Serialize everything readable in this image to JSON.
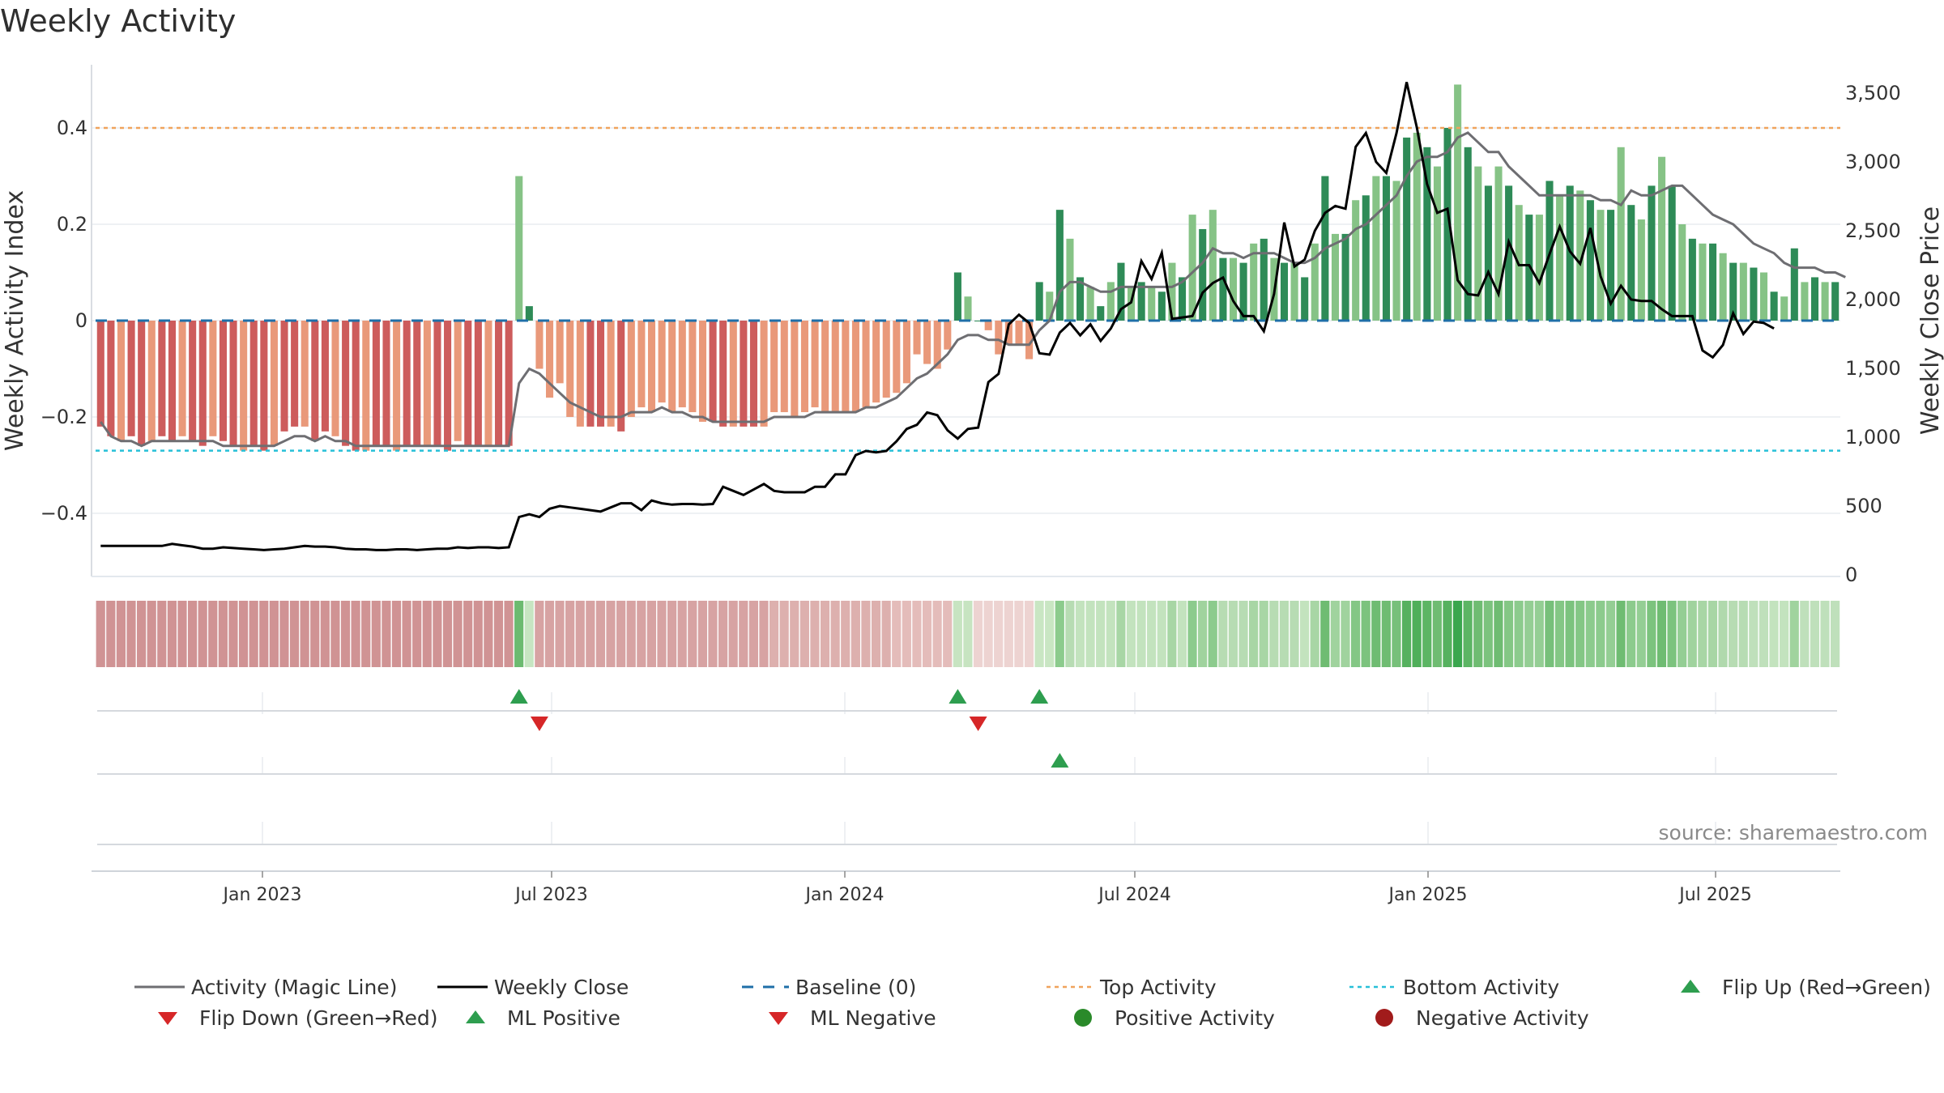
{
  "page": {
    "title": "Weekly Activity",
    "source": "source: sharemaestro.com"
  },
  "colors": {
    "magic_line": "#6e6e72",
    "close_line": "#000000",
    "baseline": "#1f6fa8",
    "top_line": "#f0a35c",
    "bottom_line": "#27c0d8",
    "pos_strong": "#2e8b57",
    "pos_weak": "#86c386",
    "neg_strong": "#cd5c5c",
    "neg_weak": "#e9997a",
    "flip_up": "#2e9e4f",
    "flip_down": "#d62728",
    "pos_dot": "#2a8a2a",
    "neg_dot": "#a11b1b"
  },
  "chart_data": {
    "type": "bar",
    "x_tick_labels": [
      "Jan 2023",
      "Jul 2023",
      "Jan 2024",
      "Jul 2024",
      "Jan 2025",
      "Jul 2025"
    ],
    "left_axis": {
      "label": "Weekly Activity Index",
      "ylim": [
        -0.53,
        0.53
      ],
      "ticks": [
        {
          "value": 0.4,
          "label": "0.4"
        },
        {
          "value": 0.2,
          "label": "0.2"
        },
        {
          "value": 0,
          "label": "0"
        },
        {
          "value": -0.2,
          "label": "−0.2"
        },
        {
          "value": -0.4,
          "label": "−0.4"
        }
      ]
    },
    "right_axis": {
      "label": "Weekly Close Price",
      "ylim": [
        0,
        3600
      ],
      "ticks": [
        {
          "value": 3500,
          "label": "3,500"
        },
        {
          "value": 3000,
          "label": "3,000"
        },
        {
          "value": 2500,
          "label": "2,500"
        },
        {
          "value": 2000,
          "label": "2,000"
        },
        {
          "value": 1500,
          "label": "1,500"
        },
        {
          "value": 1000,
          "label": "1,000"
        },
        {
          "value": 500,
          "label": "500"
        },
        {
          "value": 0,
          "label": "0"
        }
      ]
    },
    "reference_lines": {
      "baseline": 0,
      "top_activity": 0.4,
      "bottom_activity": -0.27
    },
    "activity": [
      -0.22,
      -0.24,
      -0.25,
      -0.24,
      -0.26,
      -0.25,
      -0.24,
      -0.25,
      -0.24,
      -0.25,
      -0.26,
      -0.24,
      -0.25,
      -0.26,
      -0.27,
      -0.26,
      -0.27,
      -0.26,
      -0.23,
      -0.22,
      -0.22,
      -0.25,
      -0.23,
      -0.24,
      -0.26,
      -0.27,
      -0.27,
      -0.26,
      -0.26,
      -0.27,
      -0.26,
      -0.26,
      -0.26,
      -0.26,
      -0.27,
      -0.25,
      -0.26,
      -0.26,
      -0.26,
      -0.26,
      -0.26,
      0.3,
      0.03,
      -0.1,
      -0.16,
      -0.13,
      -0.2,
      -0.22,
      -0.22,
      -0.22,
      -0.22,
      -0.23,
      -0.2,
      -0.18,
      -0.19,
      -0.17,
      -0.19,
      -0.18,
      -0.19,
      -0.21,
      -0.21,
      -0.22,
      -0.22,
      -0.22,
      -0.22,
      -0.22,
      -0.19,
      -0.19,
      -0.2,
      -0.19,
      -0.18,
      -0.19,
      -0.19,
      -0.19,
      -0.19,
      -0.18,
      -0.17,
      -0.16,
      -0.15,
      -0.13,
      -0.07,
      -0.09,
      -0.1,
      -0.06,
      0.1,
      0.05,
      0.0,
      -0.02,
      -0.07,
      -0.05,
      -0.05,
      -0.08,
      0.08,
      0.06,
      0.23,
      0.17,
      0.09,
      0.07,
      0.03,
      0.08,
      0.12,
      0.07,
      0.08,
      0.07,
      0.06,
      0.12,
      0.09,
      0.22,
      0.19,
      0.23,
      0.13,
      0.13,
      0.12,
      0.16,
      0.17,
      0.13,
      0.12,
      0.12,
      0.09,
      0.16,
      0.3,
      0.18,
      0.18,
      0.25,
      0.26,
      0.3,
      0.3,
      0.29,
      0.38,
      0.39,
      0.36,
      0.32,
      0.4,
      0.49,
      0.36,
      0.32,
      0.28,
      0.32,
      0.28,
      0.24,
      0.22,
      0.22,
      0.29,
      0.26,
      0.28,
      0.27,
      0.25,
      0.23,
      0.23,
      0.36,
      0.24,
      0.21,
      0.28,
      0.34,
      0.28,
      0.2,
      0.17,
      0.16,
      0.16,
      0.14,
      0.12,
      0.12,
      0.11,
      0.1,
      0.06,
      0.05,
      0.15,
      0.08,
      0.09,
      0.08,
      0.08
    ],
    "magic_line": [
      -0.21,
      -0.24,
      -0.25,
      -0.25,
      -0.26,
      -0.25,
      -0.25,
      -0.25,
      -0.25,
      -0.25,
      -0.25,
      -0.25,
      -0.26,
      -0.26,
      -0.26,
      -0.26,
      -0.26,
      -0.26,
      -0.25,
      -0.24,
      -0.24,
      -0.25,
      -0.24,
      -0.25,
      -0.25,
      -0.26,
      -0.26,
      -0.26,
      -0.26,
      -0.26,
      -0.26,
      -0.26,
      -0.26,
      -0.26,
      -0.26,
      -0.26,
      -0.26,
      -0.26,
      -0.26,
      -0.26,
      -0.26,
      -0.13,
      -0.1,
      -0.11,
      -0.13,
      -0.15,
      -0.17,
      -0.18,
      -0.19,
      -0.2,
      -0.2,
      -0.2,
      -0.19,
      -0.19,
      -0.19,
      -0.18,
      -0.19,
      -0.19,
      -0.2,
      -0.2,
      -0.21,
      -0.21,
      -0.21,
      -0.21,
      -0.21,
      -0.21,
      -0.2,
      -0.2,
      -0.2,
      -0.2,
      -0.19,
      -0.19,
      -0.19,
      -0.19,
      -0.19,
      -0.18,
      -0.18,
      -0.17,
      -0.16,
      -0.14,
      -0.12,
      -0.11,
      -0.09,
      -0.07,
      -0.04,
      -0.03,
      -0.03,
      -0.04,
      -0.04,
      -0.05,
      -0.05,
      -0.05,
      -0.02,
      0.0,
      0.06,
      0.08,
      0.08,
      0.07,
      0.06,
      0.06,
      0.07,
      0.07,
      0.07,
      0.07,
      0.07,
      0.07,
      0.08,
      0.1,
      0.12,
      0.15,
      0.14,
      0.14,
      0.13,
      0.14,
      0.14,
      0.14,
      0.13,
      0.12,
      0.12,
      0.13,
      0.15,
      0.16,
      0.17,
      0.19,
      0.2,
      0.22,
      0.24,
      0.26,
      0.3,
      0.33,
      0.34,
      0.34,
      0.35,
      0.38,
      0.39,
      0.37,
      0.35,
      0.35,
      0.32,
      0.3,
      0.28,
      0.26,
      0.26,
      0.26,
      0.26,
      0.26,
      0.26,
      0.25,
      0.25,
      0.24,
      0.27,
      0.26,
      0.26,
      0.27,
      0.28,
      0.28,
      0.26,
      0.24,
      0.22,
      0.21,
      0.2,
      0.18,
      0.16,
      0.15,
      0.14,
      0.12,
      0.11,
      0.11,
      0.11,
      0.1,
      0.1,
      0.09
    ],
    "weekly_close": [
      210,
      210,
      210,
      210,
      210,
      210,
      210,
      225,
      215,
      205,
      190,
      190,
      200,
      195,
      190,
      185,
      180,
      185,
      190,
      200,
      210,
      205,
      205,
      200,
      190,
      185,
      185,
      180,
      180,
      185,
      185,
      180,
      185,
      190,
      190,
      200,
      195,
      200,
      200,
      195,
      200,
      420,
      440,
      420,
      480,
      500,
      490,
      480,
      470,
      460,
      490,
      520,
      520,
      470,
      540,
      520,
      510,
      515,
      515,
      510,
      515,
      640,
      610,
      580,
      620,
      660,
      610,
      600,
      600,
      600,
      640,
      640,
      730,
      730,
      870,
      900,
      890,
      900,
      970,
      1060,
      1090,
      1180,
      1160,
      1050,
      990,
      1060,
      1070,
      1400,
      1460,
      1820,
      1890,
      1830,
      1610,
      1600,
      1760,
      1830,
      1740,
      1820,
      1700,
      1790,
      1930,
      1980,
      2280,
      2150,
      2340,
      1860,
      1870,
      1880,
      2050,
      2120,
      2160,
      1990,
      1880,
      1880,
      1770,
      2040,
      2560,
      2240,
      2290,
      2500,
      2630,
      2680,
      2660,
      3110,
      3210,
      3000,
      2920,
      3210,
      3580,
      3250,
      2840,
      2630,
      2660,
      2140,
      2040,
      2030,
      2200,
      2040,
      2420,
      2250,
      2250,
      2120,
      2330,
      2530,
      2350,
      2260,
      2520,
      2170,
      1970,
      2100,
      2000,
      1990,
      1990,
      1930,
      1880,
      1880,
      1880,
      1630,
      1580,
      1670,
      1900,
      1750,
      1840,
      1830,
      1790
    ]
  },
  "regime_strip": {
    "colors": [
      "#d09394",
      "#d09394",
      "#d09394",
      "#d09394",
      "#d09394",
      "#d09394",
      "#d09394",
      "#d09394",
      "#d09394",
      "#d09394",
      "#d09394",
      "#d09394",
      "#d09394",
      "#d09394",
      "#d09394",
      "#d09394",
      "#d09394",
      "#d09394",
      "#d09394",
      "#d09394",
      "#d09394",
      "#d09394",
      "#d09394",
      "#d09394",
      "#d09394",
      "#d09394",
      "#d09394",
      "#d09394",
      "#d09394",
      "#d09394",
      "#d09394",
      "#d09394",
      "#d09394",
      "#d09394",
      "#d09394",
      "#d09394",
      "#d09394",
      "#d09394",
      "#d09394",
      "#d09394",
      "#d09394",
      "#6cba70",
      "#c7e5c2",
      "#d7a3a3",
      "#d7a3a3",
      "#d7a3a3",
      "#d7a3a3",
      "#d7a3a3",
      "#d7a3a3",
      "#d7a3a3",
      "#d7a3a3",
      "#d7a3a3",
      "#d7a3a3",
      "#d7a3a3",
      "#d7a3a3",
      "#d7a3a3",
      "#d7a3a3",
      "#d7a3a3",
      "#d7a3a3",
      "#d7a3a3",
      "#d7a3a3",
      "#d7a3a3",
      "#d7a3a3",
      "#d7a3a3",
      "#d7a3a3",
      "#d7a3a3",
      "#ddb0ae",
      "#ddb0ae",
      "#ddb0ae",
      "#ddb0ae",
      "#ddb0ae",
      "#ddb0ae",
      "#ddb0ae",
      "#ddb0ae",
      "#ddb0ae",
      "#ddb0ae",
      "#ddb0ae",
      "#ddb0ae",
      "#e4bcba",
      "#e4bcba",
      "#e4bcba",
      "#e4bcba",
      "#e4bcba",
      "#e4bcba",
      "#c7e4c1",
      "#c7e4c1",
      "#edd3d1",
      "#edd3d1",
      "#edd3d1",
      "#edd3d1",
      "#edd3d1",
      "#edd3d1",
      "#c9e6c3",
      "#c9e6c3",
      "#8ccb8d",
      "#b7dcb3",
      "#c3e3be",
      "#c3e3be",
      "#c3e3be",
      "#c3e3be",
      "#a8d6a5",
      "#c3e3be",
      "#c3e3be",
      "#c3e3be",
      "#c3e3be",
      "#a8d6a5",
      "#c3e3be",
      "#8ccb8d",
      "#a0d39e",
      "#8ccb8d",
      "#b7dcb3",
      "#b7dcb3",
      "#b7dcb3",
      "#a8d6a5",
      "#a8d6a5",
      "#b7dcb3",
      "#b7dcb3",
      "#b7dcb3",
      "#c3e3be",
      "#a8d6a5",
      "#6fbc72",
      "#a0d39e",
      "#a0d39e",
      "#84c785",
      "#7cc37e",
      "#6fbc72",
      "#6fbc72",
      "#77c07a",
      "#56b15f",
      "#4faf5a",
      "#5cb564",
      "#6fbc72",
      "#56b15f",
      "#3aa64e",
      "#5cb564",
      "#6fbc72",
      "#7cc37e",
      "#6fbc72",
      "#84c785",
      "#8ccb8d",
      "#94ce94",
      "#94ce94",
      "#77c07a",
      "#84c785",
      "#7cc37e",
      "#84c785",
      "#8ccb8d",
      "#8ccb8d",
      "#94ce94",
      "#6fbc72",
      "#8ccb8d",
      "#94ce94",
      "#7cc37e",
      "#6fbc72",
      "#7cc37e",
      "#94ce94",
      "#a0d39e",
      "#a8d6a5",
      "#a8d6a5",
      "#b0d9ad",
      "#b7dcb3",
      "#b7dcb3",
      "#bfe0bb",
      "#bfe0bb",
      "#c3e3be",
      "#c3e3be",
      "#a0d39e",
      "#bfe0bb",
      "#bfe0bb",
      "#bfe0bb",
      "#bfe0bb"
    ]
  },
  "event_markers": {
    "flip_up_weeks": [
      41,
      84,
      92
    ],
    "flip_down_weeks": [
      43,
      86
    ],
    "ml_positive_weeks": [
      94
    ]
  },
  "legend": [
    {
      "label": "Activity (Magic Line)",
      "symbol": "line",
      "style": "solid-gray"
    },
    {
      "label": "Weekly Close",
      "symbol": "line",
      "style": "solid-black"
    },
    {
      "label": "Baseline (0)",
      "symbol": "line",
      "style": "dashed-blue"
    },
    {
      "label": "Top Activity",
      "symbol": "line",
      "style": "dotted-orange"
    },
    {
      "label": "Bottom Activity",
      "symbol": "line",
      "style": "dotted-cyan"
    },
    {
      "label": "Flip Up (Red→Green)",
      "symbol": "triangle-up-green-icon"
    },
    {
      "label": "Flip Down (Green→Red)",
      "symbol": "triangle-down-red-icon"
    },
    {
      "label": "ML Positive",
      "symbol": "triangle-up-green-icon"
    },
    {
      "label": "ML Negative",
      "symbol": "triangle-down-red-icon"
    },
    {
      "label": "Positive Activity",
      "symbol": "circle-green-icon"
    },
    {
      "label": "Negative Activity",
      "symbol": "circle-red-icon"
    }
  ]
}
